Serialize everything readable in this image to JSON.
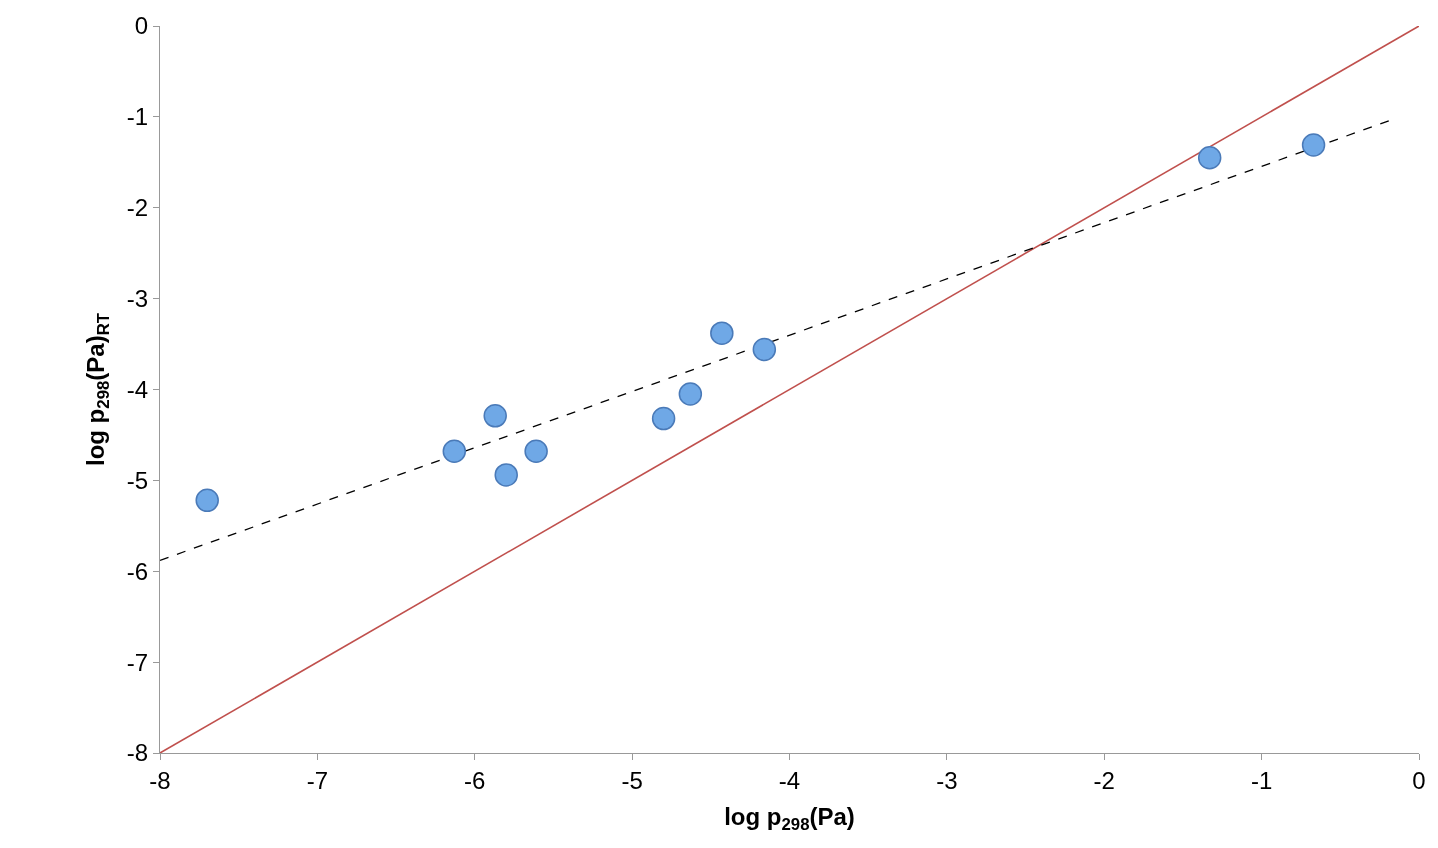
{
  "chart_data": {
    "type": "scatter",
    "xlabel": "log p$_{298}$(Pa)",
    "ylabel": "log p$_{298}$(Pa)$_{RT}$",
    "xlim": [
      -8,
      0
    ],
    "ylim": [
      -8,
      0
    ],
    "xticks": [
      -8,
      -7,
      -6,
      -5,
      -4,
      -3,
      -2,
      -1,
      0
    ],
    "yticks": [
      -8,
      -7,
      -6,
      -5,
      -4,
      -3,
      -2,
      -1,
      0
    ],
    "grid": false,
    "legend": false,
    "series": [
      {
        "type": "line",
        "color": "#c0504d",
        "line_style": "solid",
        "marker": "none",
        "x": [
          -8,
          0
        ],
        "values": [
          -8,
          0
        ]
      },
      {
        "type": "line",
        "color": "#000000",
        "line_style": "dashed",
        "marker": "none",
        "x": [
          -8,
          -0.17
        ],
        "values": [
          -5.88,
          -1.03
        ]
      },
      {
        "color": "#6fa8e6",
        "marker": "circle",
        "x": [
          -7.7,
          -6.13,
          -5.87,
          -5.8,
          -5.61,
          -4.8,
          -4.63,
          -4.43,
          -4.16,
          -1.33,
          -0.67
        ],
        "values": [
          -5.22,
          -4.68,
          -4.29,
          -4.94,
          -4.68,
          -4.32,
          -4.05,
          -3.38,
          -3.56,
          -1.45,
          -1.31
        ]
      }
    ]
  }
}
